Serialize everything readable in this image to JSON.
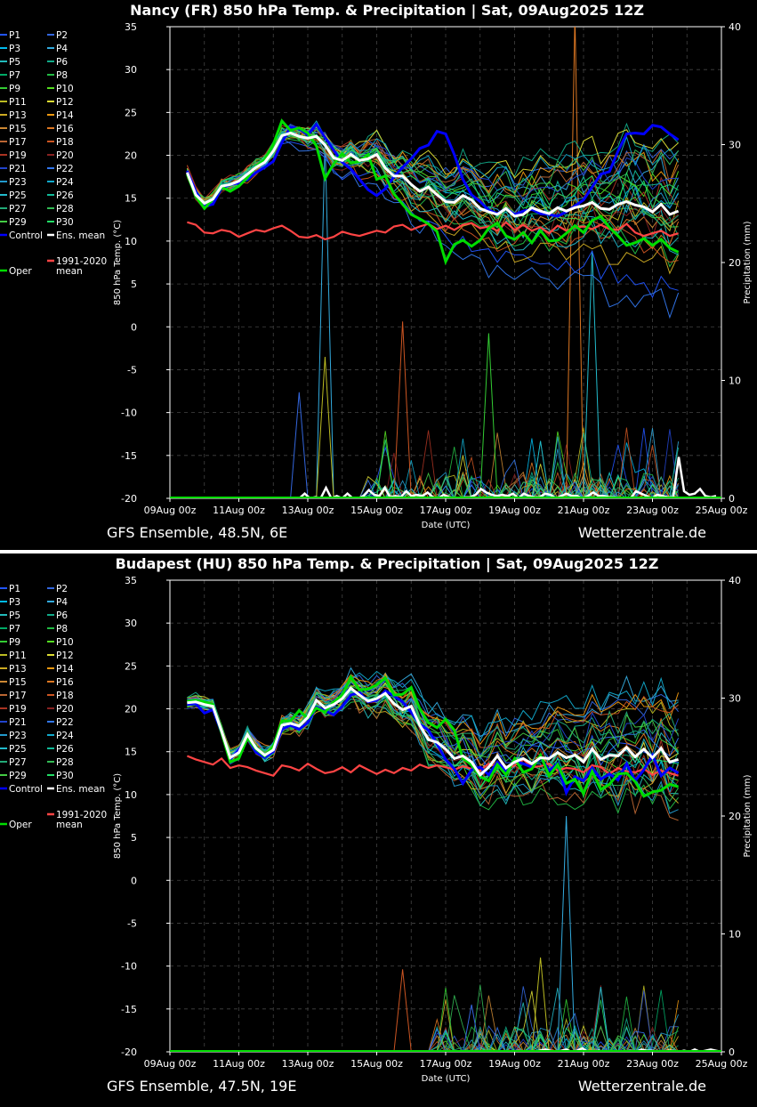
{
  "legend": {
    "members": [
      "P1",
      "P2",
      "P3",
      "P4",
      "P5",
      "P6",
      "P7",
      "P8",
      "P9",
      "P10",
      "P11",
      "P12",
      "P13",
      "P14",
      "P15",
      "P16",
      "P17",
      "P18",
      "P19",
      "P20",
      "P21",
      "P22",
      "P23",
      "P24",
      "P25",
      "P26",
      "P27",
      "P28",
      "P29",
      "P30"
    ],
    "control": "Control",
    "ens_mean": "Ens. mean",
    "climate_line1": "1991-2020",
    "climate_line2": "mean",
    "oper": "Oper"
  },
  "colors": {
    "control": "#0000ff",
    "ens_mean": "#ffffff",
    "climate": "#ff4444",
    "oper": "#00dd00",
    "members": [
      "#2255ff",
      "#3366dd",
      "#00bbee",
      "#33aadd",
      "#22bbbb",
      "#11aa88",
      "#00aa66",
      "#22bb44",
      "#33cc33",
      "#55dd22",
      "#bbbb22",
      "#dddd33",
      "#ccaa22",
      "#ee9911",
      "#cc8833",
      "#dd7722",
      "#bb6633",
      "#cc5522",
      "#aa3322",
      "#882222",
      "#2244cc",
      "#3377ee",
      "#2299cc",
      "#11aacc",
      "#22bbcc",
      "#11bb99",
      "#22aa77",
      "#33bb55",
      "#44cc44",
      "#22dd66"
    ]
  },
  "chart_data": [
    {
      "type": "line",
      "title": "Nancy  (FR)  850 hPa Temp. & Precipitation | Sat, 09Aug2025 12Z",
      "xlabel": "Date (UTC)",
      "ylabel": "850 hPa Temp. (°C)",
      "y2label": "Precipitation (mm)",
      "ylim": [
        -20,
        35
      ],
      "y2lim": [
        0,
        40
      ],
      "yticks": [
        35,
        30,
        25,
        20,
        15,
        10,
        5,
        0,
        -5,
        -10,
        -15,
        -20
      ],
      "y2ticks": [
        40,
        30,
        20,
        10,
        0
      ],
      "xticks": [
        "09Aug 00z",
        "11Aug 00z",
        "13Aug 00z",
        "15Aug 00z",
        "17Aug 00z",
        "19Aug 00z",
        "21Aug 00z",
        "23Aug 00z",
        "25Aug 00z"
      ],
      "footer_left": "GFS Ensemble, 48.5N, 6E",
      "footer_right": "Wetterzentrale.de",
      "x_step_hours": 6,
      "x_start_hours": 12,
      "x_end_hours": 384,
      "x_range_hours": [
        0,
        384
      ],
      "control": [
        18.2,
        15.8,
        14.1,
        14.3,
        16.2,
        16.6,
        16.8,
        17.2,
        18.0,
        18.6,
        19.3,
        21.5,
        23.3,
        23.1,
        22.4,
        23.6,
        22.1,
        20.6,
        19.2,
        18.4,
        17.2,
        16.0,
        15.3,
        16.1,
        17.5,
        18.6,
        19.6,
        20.8,
        21.2,
        22.8,
        22.5,
        20.1,
        17.2,
        15.4,
        14.6,
        13.6,
        13.2,
        13.8,
        13.1,
        13.5,
        13.7,
        13.2,
        13.1,
        12.9,
        13.4,
        14.1,
        14.8,
        16.3,
        17.8,
        18.1,
        20.5,
        22.5,
        22.6,
        22.5,
        23.5,
        23.3,
        22.5,
        21.8
      ],
      "oper": [
        17.8,
        15.2,
        13.8,
        14.9,
        16.3,
        15.8,
        16.4,
        17.4,
        18.7,
        19.5,
        21.3,
        24.0,
        22.9,
        23.2,
        22.6,
        21.1,
        17.3,
        19.0,
        20.2,
        19.1,
        19.3,
        20.1,
        17.2,
        17.6,
        15.5,
        14.3,
        13.1,
        12.6,
        12.0,
        11.1,
        7.6,
        9.6,
        10.1,
        9.4,
        10.1,
        11.5,
        12.1,
        10.6,
        10.2,
        11.0,
        9.8,
        11.2,
        10.0,
        10.1,
        10.9,
        11.8,
        11.0,
        12.4,
        12.9,
        11.6,
        10.6,
        9.5,
        9.8,
        10.3,
        9.5,
        10.2,
        9.2,
        8.7
      ],
      "mean": [
        18.0,
        15.4,
        14.4,
        14.9,
        16.4,
        16.6,
        17.0,
        17.8,
        18.6,
        19.2,
        20.5,
        22.3,
        22.6,
        22.2,
        22.0,
        22.2,
        21.2,
        19.7,
        19.4,
        20.1,
        19.4,
        19.6,
        20.1,
        18.5,
        17.6,
        17.6,
        16.6,
        15.8,
        16.3,
        15.4,
        14.6,
        14.5,
        15.3,
        14.8,
        13.8,
        13.4,
        13.1,
        13.8,
        12.9,
        13.1,
        13.9,
        13.5,
        13.2,
        13.9,
        13.5,
        13.9,
        14.1,
        14.5,
        13.8,
        13.7,
        14.3,
        14.6,
        14.2,
        14.0,
        13.4,
        14.3,
        13.1,
        13.5
      ],
      "climate": [
        12.2,
        11.9,
        11.0,
        10.9,
        11.3,
        11.1,
        10.5,
        10.9,
        11.3,
        11.1,
        11.5,
        11.8,
        11.2,
        10.5,
        10.4,
        10.7,
        10.2,
        10.5,
        11.1,
        10.8,
        10.6,
        10.9,
        11.2,
        11.0,
        11.7,
        11.9,
        11.3,
        11.7,
        12.0,
        11.4,
        11.8,
        11.3,
        11.9,
        12.1,
        11.5,
        11.7,
        11.2,
        12.2,
        11.3,
        11.9,
        11.2,
        11.6,
        10.9,
        11.8,
        11.2,
        11.6,
        11.7,
        11.4,
        11.9,
        11.4,
        11.3,
        12.0,
        11.0,
        10.6,
        10.9,
        11.2,
        10.6,
        10.9
      ],
      "member_start": [
        18.0,
        17.8,
        18.3,
        17.9,
        18.1,
        17.6,
        18.5,
        18.2,
        17.7,
        18.4,
        18.1,
        17.9,
        18.3,
        18.0,
        17.8,
        18.6,
        18.2,
        17.5,
        18.9,
        17.6,
        18.3,
        18.0,
        17.7,
        18.4,
        18.1,
        17.9,
        18.2,
        18.0,
        17.8,
        18.5
      ],
      "member_end": [
        4.8,
        19.5,
        14.2,
        17.3,
        11.5,
        22.0,
        12.4,
        9.1,
        14.8,
        16.6,
        13.0,
        21.2,
        7.2,
        19.0,
        12.1,
        10.5,
        18.3,
        8.8,
        15.2,
        11.7,
        17.5,
        2.1,
        13.9,
        20.1,
        9.4,
        16.0,
        11.4,
        18.7,
        12.9,
        15.3
      ],
      "mean_precip": [
        0,
        0,
        0,
        0,
        0,
        0,
        0,
        0,
        0,
        0,
        0,
        0,
        0,
        0,
        0,
        0,
        0,
        0,
        0,
        0,
        0,
        0,
        0.4,
        0,
        0.1,
        0,
        0.9,
        0,
        0.2,
        0,
        0.4,
        0,
        0,
        0.2,
        0.7,
        0.3,
        0.2,
        0.9,
        0.1,
        0.2,
        0.1,
        0.6,
        0.2,
        0.3,
        0.2,
        0.5,
        0.1,
        0,
        0.3,
        0.1,
        0,
        0,
        0.1,
        0.1,
        0.3,
        0.8,
        0.5,
        0.3,
        0.2,
        0.3,
        0.2,
        0.4,
        0,
        0.4,
        0.2,
        0.1,
        0.1,
        0.4,
        0.3,
        0,
        0.2,
        0.4,
        0.2,
        0.2,
        0,
        0.2,
        0.5,
        0.2,
        0.2,
        0.1,
        0.1,
        0,
        0,
        0,
        0.6,
        0.4,
        0.2,
        0,
        0.3,
        0.2,
        0.1,
        0.1,
        3.5,
        0.6,
        0.3,
        0.4,
        0.8,
        0.2,
        0.1,
        0.2
      ],
      "spikes": [
        [
          16,
          30.5
        ],
        [
          16,
          12
        ],
        [
          25,
          15
        ],
        [
          47,
          21
        ],
        [
          13,
          9
        ],
        [
          35,
          14
        ],
        [
          45,
          41
        ]
      ],
      "seed": 11
    },
    {
      "type": "line",
      "title": "Budapest  (HU)  850 hPa Temp. & Precipitation | Sat, 09Aug2025 12Z",
      "xlabel": "Date (UTC)",
      "ylabel": "850 hPa Temp. (°C)",
      "y2label": "Precipitation (mm)",
      "ylim": [
        -20,
        35
      ],
      "y2lim": [
        0,
        40
      ],
      "yticks": [
        35,
        30,
        25,
        20,
        15,
        10,
        5,
        0,
        -5,
        -10,
        -15,
        -20
      ],
      "y2ticks": [
        40,
        30,
        20,
        10,
        0
      ],
      "xticks": [
        "09Aug 00z",
        "11Aug 00z",
        "13Aug 00z",
        "15Aug 00z",
        "17Aug 00z",
        "19Aug 00z",
        "21Aug 00z",
        "23Aug 00z",
        "25Aug 00z"
      ],
      "footer_left": "GFS Ensemble, 47.5N, 19E",
      "footer_right": "Wetterzentrale.de",
      "x_step_hours": 6,
      "x_start_hours": 12,
      "x_end_hours": 384,
      "x_range_hours": [
        0,
        384
      ],
      "control": [
        20.5,
        20.6,
        19.5,
        19.9,
        17.2,
        14.1,
        15.2,
        16.6,
        14.9,
        14.3,
        15.0,
        17.6,
        18.1,
        17.6,
        18.4,
        20.2,
        19.8,
        19.3,
        20.3,
        21.6,
        21.9,
        20.8,
        21.0,
        22.1,
        21.5,
        20.8,
        19.6,
        18.2,
        17.5,
        15.9,
        14.1,
        13.0,
        11.3,
        12.9,
        13.2,
        12.3,
        13.8,
        12.8,
        13.9,
        13.6,
        13.2,
        14.3,
        12.8,
        13.6,
        10.2,
        12.1,
        11.6,
        13.1,
        11.8,
        12.4,
        11.7,
        13.6,
        11.6,
        12.9,
        14.6,
        12.2,
        13.1,
        12.5
      ],
      "oper": [
        20.9,
        21.0,
        20.8,
        20.5,
        17.2,
        13.8,
        14.2,
        16.6,
        15.3,
        14.5,
        15.6,
        18.6,
        18.6,
        19.8,
        18.9,
        20.1,
        19.6,
        20.8,
        21.6,
        23.7,
        22.2,
        22.3,
        22.8,
        23.6,
        21.6,
        21.7,
        22.5,
        20.0,
        18.4,
        17.8,
        18.8,
        17.5,
        14.2,
        13.5,
        12.1,
        11.6,
        13.5,
        12.3,
        14.2,
        12.6,
        13.0,
        14.6,
        12.2,
        13.5,
        11.3,
        11.8,
        10.1,
        12.7,
        10.6,
        11.2,
        12.4,
        12.5,
        11.5,
        9.8,
        10.3,
        10.5,
        11.2,
        10.9
      ],
      "mean": [
        20.7,
        20.8,
        20.5,
        20.3,
        17.4,
        14.3,
        14.9,
        17.0,
        15.4,
        14.6,
        15.2,
        18.1,
        18.3,
        18.0,
        19.0,
        21.0,
        20.1,
        20.5,
        21.2,
        22.4,
        21.6,
        20.9,
        21.2,
        21.8,
        20.6,
        19.9,
        20.3,
        18.1,
        16.4,
        16.1,
        15.3,
        14.2,
        14.5,
        13.8,
        12.3,
        13.2,
        14.5,
        13.1,
        13.8,
        14.2,
        13.6,
        14.3,
        14.2,
        14.9,
        14.3,
        14.6,
        13.8,
        15.3,
        14.1,
        14.6,
        14.5,
        15.5,
        14.4,
        15.3,
        14.3,
        15.4,
        13.8,
        14.1
      ],
      "climate": [
        14.5,
        14.1,
        13.8,
        13.5,
        14.2,
        13.1,
        13.4,
        13.2,
        12.8,
        12.5,
        12.2,
        13.4,
        13.2,
        12.8,
        13.6,
        13.0,
        12.5,
        12.7,
        13.2,
        12.6,
        13.4,
        12.9,
        12.4,
        12.9,
        12.5,
        13.1,
        12.8,
        13.5,
        13.1,
        13.4,
        13.2,
        12.9,
        13.3,
        13.0,
        12.8,
        13.6,
        13.3,
        12.9,
        13.4,
        14.1,
        13.2,
        13.3,
        13.6,
        12.8,
        13.1,
        13.0,
        12.6,
        13.4,
        13.2,
        12.4,
        13.1,
        12.7,
        12.6,
        13.0,
        12.3,
        12.8,
        12.5,
        12.2
      ],
      "member_start": [
        20.5,
        21.2,
        20.8,
        21.0,
        20.3,
        21.5,
        20.6,
        20.9,
        21.1,
        20.4,
        20.7,
        21.3,
        20.2,
        21.0,
        20.8,
        21.4,
        20.5,
        20.9,
        21.1,
        20.6,
        20.3,
        21.2,
        20.8,
        21.0,
        20.4,
        21.1,
        20.7,
        20.9,
        21.2,
        20.6
      ],
      "member_end": [
        15.2,
        19.8,
        12.1,
        21.4,
        9.8,
        17.3,
        13.6,
        7.9,
        16.5,
        11.2,
        18.9,
        14.0,
        10.5,
        20.2,
        12.8,
        16.1,
        8.7,
        19.0,
        13.3,
        11.9,
        17.8,
        15.5,
        9.4,
        22.0,
        14.7,
        12.4,
        18.1,
        10.9,
        16.8,
        13.1
      ],
      "mean_precip": [
        0,
        0,
        0,
        0,
        0,
        0,
        0,
        0,
        0,
        0,
        0,
        0,
        0,
        0,
        0,
        0,
        0,
        0,
        0,
        0,
        0,
        0,
        0,
        0,
        0,
        0,
        0,
        0,
        0,
        0,
        0,
        0,
        0,
        0,
        0,
        0,
        0,
        0,
        0,
        0,
        0,
        0,
        0,
        0,
        0,
        0,
        0,
        0,
        0,
        0,
        0,
        0,
        0,
        0,
        0,
        0,
        0,
        0,
        0,
        0,
        0,
        0,
        0.1,
        0,
        0,
        0,
        0.1,
        0.2,
        0.1,
        0,
        0.1,
        0.2,
        0,
        0.1,
        0.3,
        0,
        0,
        0.1,
        0,
        0,
        0,
        0,
        0,
        0.1,
        0,
        0.2,
        0.1,
        0.1,
        0,
        0,
        0.1,
        0.1,
        0,
        0.1,
        0,
        0.2,
        0,
        0.1,
        0.2,
        0.1,
        0,
        0.2,
        0.3,
        0,
        0.1,
        0,
        0,
        0,
        0.2,
        0,
        0,
        0.1,
        0,
        0,
        0,
        0.1,
        0.3,
        0.1,
        0.2,
        0,
        0.1,
        0,
        0.1,
        1.2,
        0.3,
        0.2,
        0.1,
        0.6,
        0.5,
        0.2,
        0.1
      ],
      "spikes": [
        [
          44,
          20
        ],
        [
          41,
          8
        ],
        [
          25,
          7
        ],
        [
          48,
          5.5
        ],
        [
          33,
          4
        ]
      ],
      "seed": 29
    }
  ]
}
